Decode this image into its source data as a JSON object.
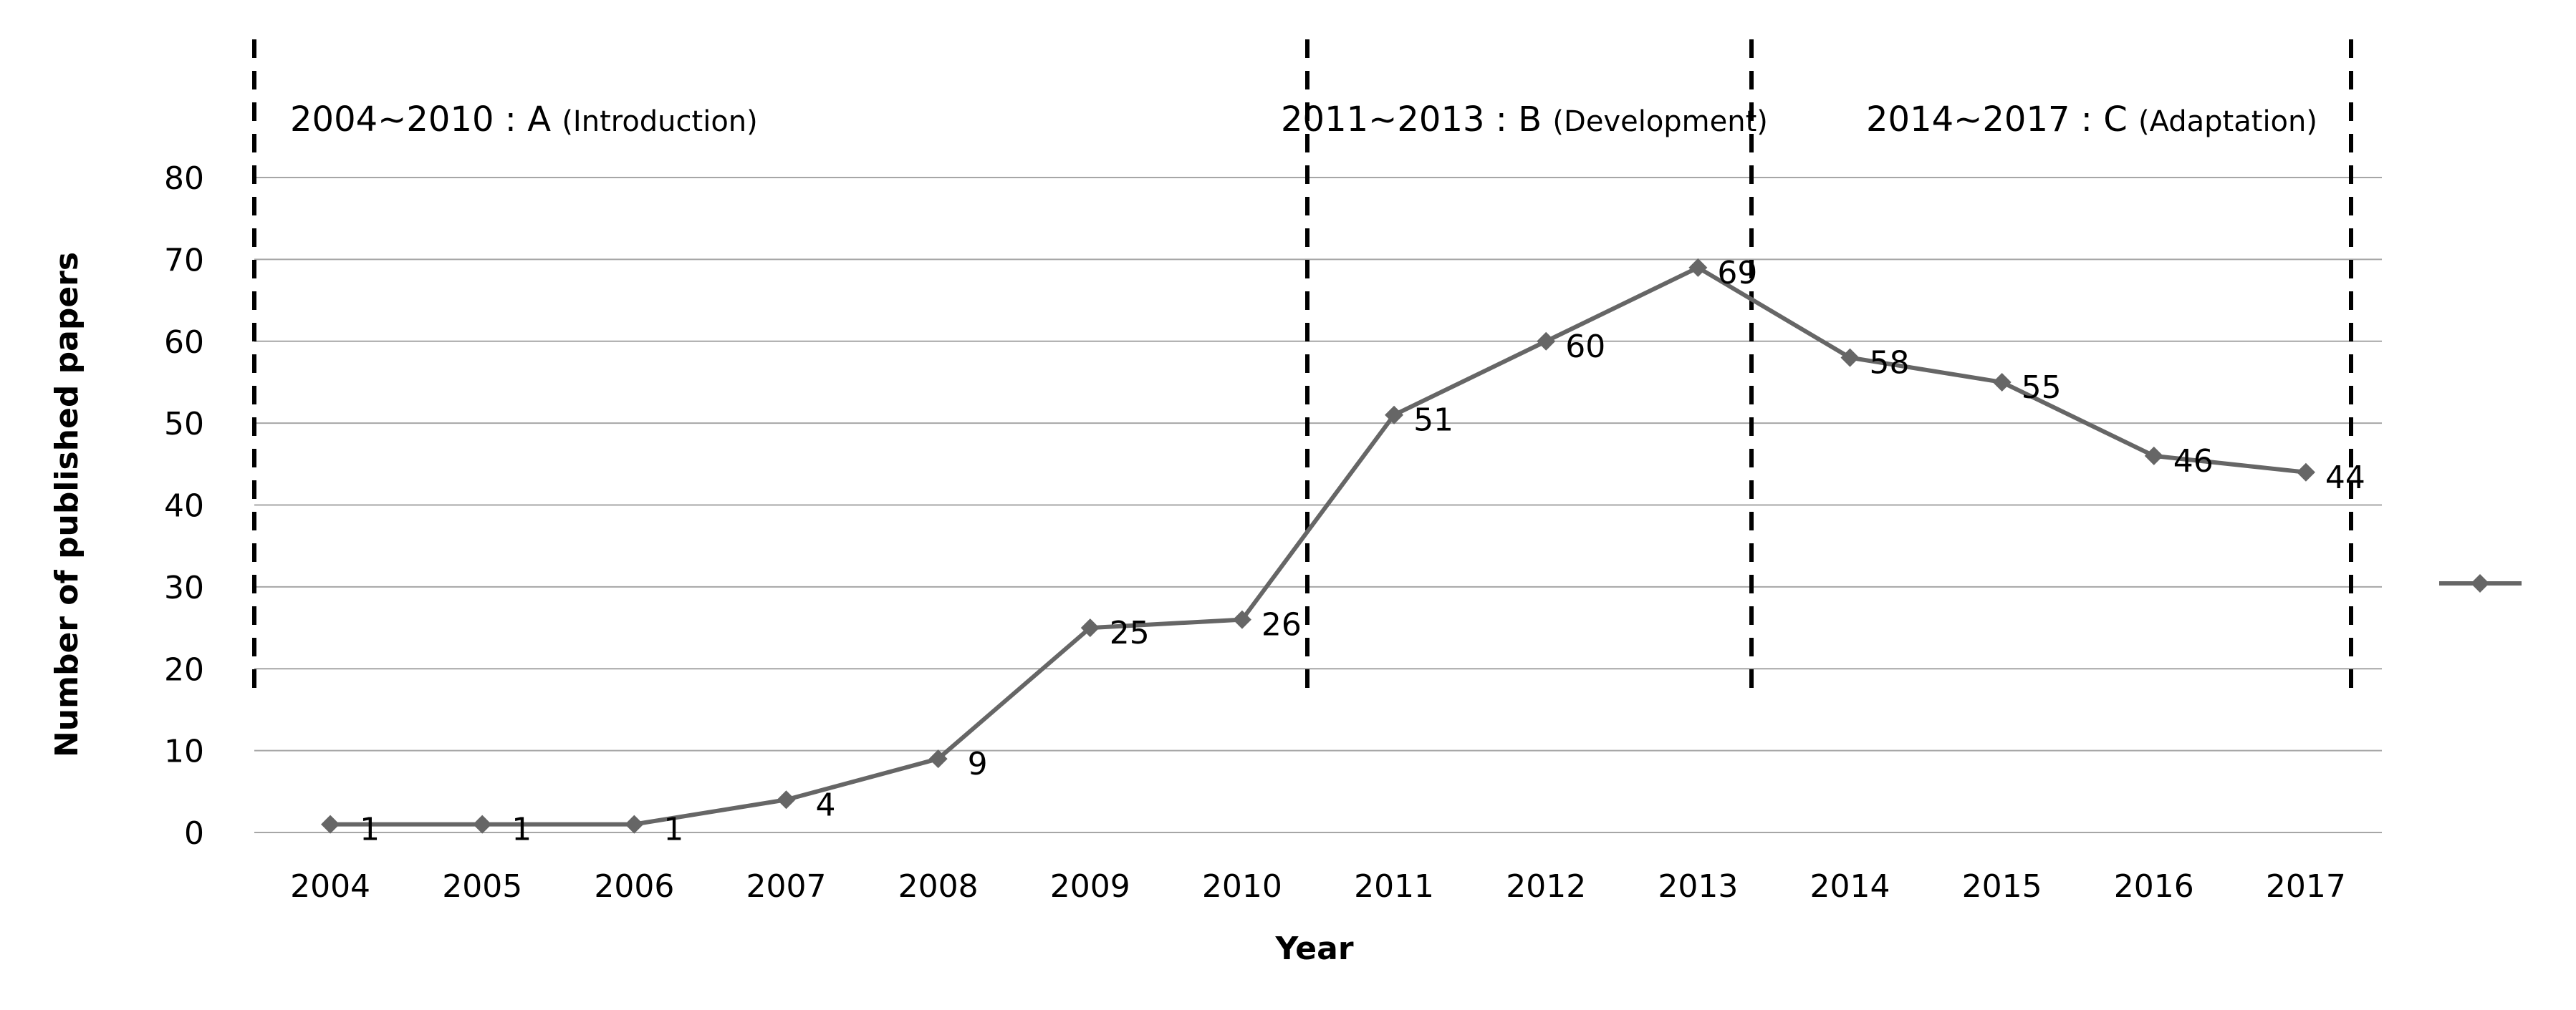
{
  "chart_data": {
    "type": "line",
    "title": "",
    "xlabel": "Year",
    "ylabel": "Number of published papers",
    "categories": [
      "2004",
      "2005",
      "2006",
      "2007",
      "2008",
      "2009",
      "2010",
      "2011",
      "2012",
      "2013",
      "2014",
      "2015",
      "2016",
      "2017"
    ],
    "series": [
      {
        "name": "",
        "values": [
          1,
          1,
          1,
          4,
          9,
          25,
          26,
          51,
          60,
          69,
          58,
          55,
          46,
          44
        ],
        "color": "#666666"
      }
    ],
    "ylim": [
      0,
      80
    ],
    "yticks": [
      0,
      10,
      20,
      30,
      40,
      50,
      60,
      70,
      80
    ],
    "grid": true,
    "legend_position": "right",
    "phases": [
      {
        "range": "2004~2010",
        "sep": " : ",
        "label": "A",
        "desc": "(Introduction)"
      },
      {
        "range": "2011~2013",
        "sep": " : ",
        "label": "B",
        "desc": "(Development)"
      },
      {
        "range": "2014~2017",
        "sep": " : ",
        "label": "C",
        "desc": "(Adaptation)"
      }
    ]
  }
}
